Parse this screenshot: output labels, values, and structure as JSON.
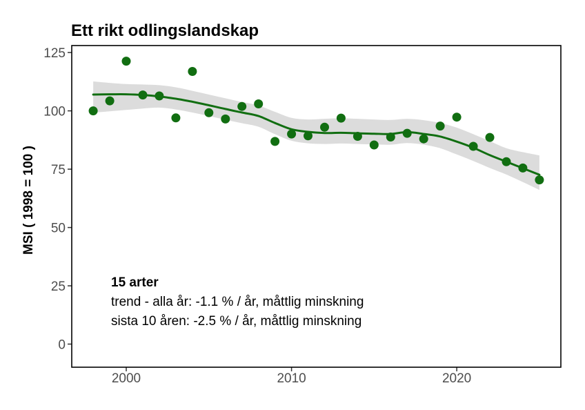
{
  "colors": {
    "series_green": "#116e11",
    "band_gray": "#dcdcdc",
    "axis_text": "#4d4d4d",
    "panel_border": "#000000"
  },
  "chart_data": {
    "type": "scatter",
    "title": "Ett rikt odlingslandskap",
    "xlabel": "",
    "ylabel": "MSI ( 1998 = 100 )",
    "grid": false,
    "legend": "none",
    "x_ticks": [
      2000,
      2010,
      2020
    ],
    "y_ticks": [
      0,
      25,
      50,
      75,
      100,
      125
    ],
    "xlim": [
      1996.7,
      2026.3
    ],
    "ylim": [
      -9.9,
      128
    ],
    "x": [
      1998,
      1999,
      2000,
      2001,
      2002,
      2003,
      2004,
      2005,
      2006,
      2007,
      2008,
      2009,
      2010,
      2011,
      2012,
      2013,
      2014,
      2015,
      2016,
      2017,
      2018,
      2019,
      2020,
      2021,
      2022,
      2023,
      2024,
      2025
    ],
    "points": [
      100.0,
      104.3,
      121.3,
      106.8,
      106.4,
      97.0,
      116.9,
      99.2,
      96.5,
      101.9,
      103.0,
      86.9,
      90.1,
      89.3,
      93.0,
      96.9,
      89.1,
      85.4,
      88.8,
      90.4,
      88.0,
      93.5,
      97.3,
      84.8,
      88.6,
      78.2,
      75.5,
      70.4
    ],
    "trend": [
      107.0,
      107.1,
      107.1,
      106.8,
      106.2,
      105.2,
      103.9,
      102.4,
      100.8,
      99.3,
      97.8,
      94.8,
      92.1,
      91.0,
      90.5,
      90.6,
      90.4,
      90.2,
      90.1,
      90.9,
      90.1,
      89.0,
      86.8,
      84.2,
      81.0,
      78.2,
      75.4,
      72.6
    ],
    "band_upper": [
      112.6,
      112.0,
      111.5,
      111.3,
      111.0,
      110.1,
      108.6,
      107.0,
      105.4,
      103.8,
      102.3,
      99.6,
      97.0,
      96.3,
      96.6,
      96.8,
      96.6,
      96.3,
      96.1,
      96.6,
      96.0,
      94.8,
      92.8,
      90.0,
      87.0,
      84.0,
      82.3,
      80.9
    ],
    "band_lower": [
      99.2,
      99.8,
      100.4,
      101.0,
      101.4,
      100.6,
      99.3,
      97.8,
      96.2,
      94.7,
      93.2,
      90.0,
      87.2,
      86.1,
      85.8,
      86.0,
      85.8,
      85.6,
      85.5,
      86.2,
      85.5,
      84.0,
      81.3,
      78.5,
      75.5,
      72.7,
      69.5,
      66.1
    ],
    "annotations": [
      "15 arter",
      "trend - alla år: -1.1 % / år, måttlig minskning",
      "sista 10 åren: -2.5 % / år, måttlig minskning"
    ]
  }
}
